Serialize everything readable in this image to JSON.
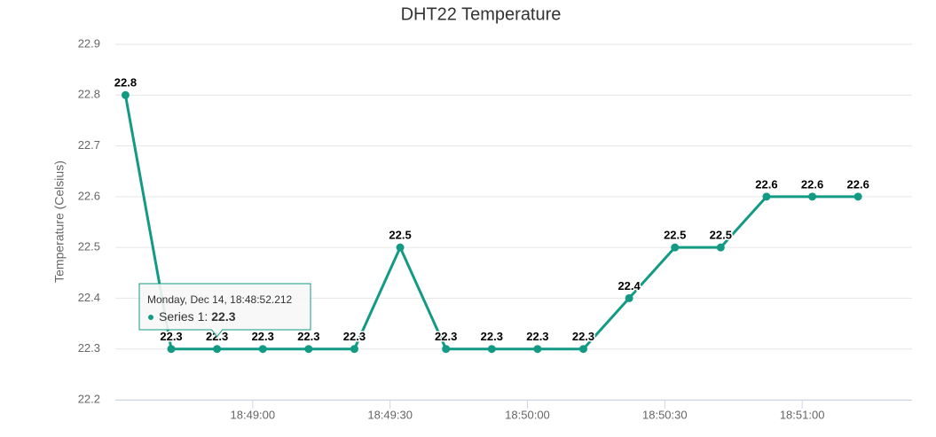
{
  "chart_data": {
    "type": "line",
    "title": "DHT22 Temperature",
    "y_label": "Temperature (Celsius)",
    "x": [
      67712.212,
      67722.212,
      67732.212,
      67742.212,
      67752.212,
      67762.212,
      67772.212,
      67782.212,
      67792.212,
      67802.212,
      67812.212,
      67822.212,
      67832.212,
      67842.212,
      67852.212,
      67862.212,
      67872.212
    ],
    "series": [
      {
        "color": "#139a84",
        "values": [
          22.8,
          22.3,
          22.3,
          22.3,
          22.3,
          22.3,
          22.5,
          22.3,
          22.3,
          22.3,
          22.3,
          22.4,
          22.5,
          22.5,
          22.6,
          22.6,
          22.6
        ]
      }
    ],
    "xlim": [
      67710,
      67884
    ],
    "xticks": [
      {
        "value": 67740,
        "label": "18:49:00"
      },
      {
        "value": 67770,
        "label": "18:49:30"
      },
      {
        "value": 67800,
        "label": "18:50:00"
      },
      {
        "value": 67830,
        "label": "18:50:30"
      },
      {
        "value": 67860,
        "label": "18:51:00"
      }
    ],
    "ylim": [
      22.2,
      22.9
    ],
    "yticks": [
      22.2,
      22.3,
      22.4,
      22.5,
      22.6,
      22.7,
      22.8,
      22.9
    ],
    "grid": true,
    "tooltip": {
      "point": 2,
      "header": "Monday, Dec 14, 18:48:52.212",
      "label": "Series 1:"
    }
  }
}
